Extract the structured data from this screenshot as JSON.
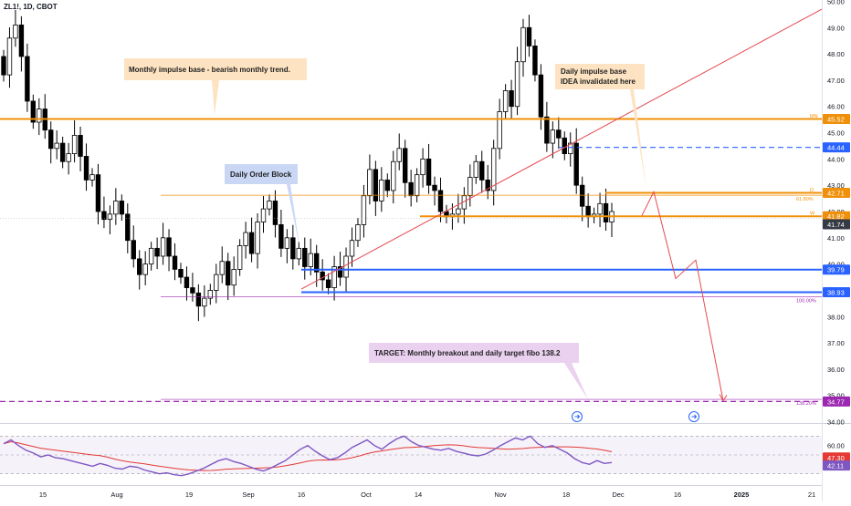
{
  "symbol_line": "ZL1!, 1D, CBOT",
  "chart_data": {
    "type": "candlestick",
    "price_axis": {
      "ticks": [
        "50.00",
        "49.00",
        "48.00",
        "47.00",
        "46.00",
        "45.00",
        "44.00",
        "43.00",
        "42.00",
        "41.00",
        "40.00",
        "39.00",
        "38.00",
        "37.00",
        "36.00",
        "35.00",
        "34.00"
      ],
      "range": [
        33.95,
        50.05
      ]
    },
    "time_axis": {
      "labels": [
        "15",
        "Aug",
        "19",
        "Sep",
        "16",
        "Oct",
        "14",
        "Nov",
        "18",
        "Dec",
        "16",
        "2025",
        "21"
      ],
      "bold_labels": [
        "2025"
      ]
    },
    "levels": [
      {
        "price": 45.52,
        "label": "45.52",
        "tag": "MN",
        "color": "#f0900a",
        "style": "solid"
      },
      {
        "price": 44.44,
        "label": "44.44",
        "tag": "",
        "color": "#2962ff",
        "style": "dashed"
      },
      {
        "price": 42.71,
        "label": "42.71",
        "tag": "D",
        "color": "#f0900a",
        "style": "solid"
      },
      {
        "price": 41.82,
        "label": "41.82",
        "tag": "W",
        "color": "#f0900a",
        "style": "solid"
      },
      {
        "price": 39.79,
        "label": "39.79",
        "tag": "",
        "color": "#2962ff",
        "style": "solid"
      },
      {
        "price": 38.93,
        "label": "38.93",
        "tag": "",
        "color": "#2962ff",
        "style": "solid"
      },
      {
        "price": 34.77,
        "label": "34.77",
        "tag": "",
        "color": "#9c27b0",
        "style": "dashed"
      }
    ],
    "last_price": {
      "price": 41.74,
      "label": "41.74"
    },
    "fib_labels": [
      {
        "text": "61.80%",
        "price": 42.55
      },
      {
        "text": "100.00%",
        "price": 38.68
      },
      {
        "text": "138.20%",
        "price": 34.78
      }
    ],
    "annotations": [
      {
        "text": "Monthly impulse base - bearish monthly trend.",
        "color": "#fde3c2"
      },
      {
        "text": "Daily impulse base",
        "text2": "IDEA invalidated here",
        "color": "#fde3c2"
      },
      {
        "text": "Daily Order Block",
        "color": "#c9d7f5"
      },
      {
        "text": "TARGET: Monthly breakout and daily target fibo 138.2",
        "color": "#ead1f0"
      }
    ],
    "projection_path": [
      {
        "date": "after Nov 29",
        "price": 41.85
      },
      {
        "date": "~Dec 10",
        "price": 42.75
      },
      {
        "date": "~Dec 14",
        "price": 39.45
      },
      {
        "date": "~Dec 18",
        "price": 40.15
      },
      {
        "date": "~Dec 26",
        "price": 34.8
      }
    ],
    "rsi": {
      "ticks": [
        "60.00",
        "40.00"
      ],
      "value_label": "42.11",
      "ma_label": "47.30",
      "range": [
        20,
        80
      ]
    }
  },
  "colors": {
    "up_candle": "#ffffff",
    "down_candle": "#000000",
    "orange": "#f0900a",
    "blue": "#2962ff",
    "purple": "#9c27b0",
    "trendline": "#e5484d",
    "rsi_line": "#7e57c2",
    "rsi_ma": "#e53935"
  }
}
